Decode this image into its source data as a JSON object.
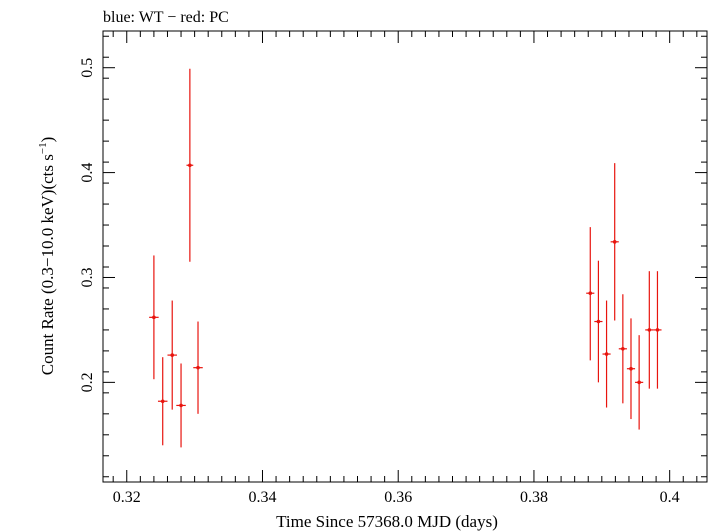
{
  "chart_data": {
    "type": "scatter",
    "title": "blue: WT − red: PC",
    "xlabel": "Time Since 57368.0 MJD (days)",
    "ylabel_main": "Count Rate (0.3−10.0 keV)(cts s",
    "ylabel_sup": "−1",
    "ylabel_close": ")",
    "xlim": [
      0.3165,
      0.4055
    ],
    "ylim": [
      0.105,
      0.535
    ],
    "xticks": [
      0.32,
      0.34,
      0.36,
      0.38,
      0.4
    ],
    "xtick_labels": [
      "0.32",
      "0.34",
      "0.36",
      "0.38",
      "0.4"
    ],
    "yticks": [
      0.2,
      0.3,
      0.4,
      0.5
    ],
    "ytick_labels": [
      "0.2",
      "0.3",
      "0.4",
      "0.5"
    ],
    "series": [
      {
        "name": "PC",
        "color": "#e8140e",
        "points": [
          {
            "x": 0.324,
            "xerr": 0.0007,
            "y": 0.262,
            "ylo": 0.203,
            "yhi": 0.321
          },
          {
            "x": 0.3253,
            "xerr": 0.0007,
            "y": 0.182,
            "ylo": 0.14,
            "yhi": 0.224
          },
          {
            "x": 0.3267,
            "xerr": 0.0007,
            "y": 0.226,
            "ylo": 0.174,
            "yhi": 0.278
          },
          {
            "x": 0.328,
            "xerr": 0.0007,
            "y": 0.178,
            "ylo": 0.138,
            "yhi": 0.218
          },
          {
            "x": 0.3293,
            "xerr": 0.0005,
            "y": 0.407,
            "ylo": 0.315,
            "yhi": 0.499
          },
          {
            "x": 0.3305,
            "xerr": 0.0007,
            "y": 0.214,
            "ylo": 0.17,
            "yhi": 0.258
          },
          {
            "x": 0.3883,
            "xerr": 0.0006,
            "y": 0.285,
            "ylo": 0.221,
            "yhi": 0.348
          },
          {
            "x": 0.3895,
            "xerr": 0.0006,
            "y": 0.258,
            "ylo": 0.2,
            "yhi": 0.316
          },
          {
            "x": 0.3907,
            "xerr": 0.0006,
            "y": 0.227,
            "ylo": 0.176,
            "yhi": 0.278
          },
          {
            "x": 0.3919,
            "xerr": 0.0006,
            "y": 0.334,
            "ylo": 0.259,
            "yhi": 0.409
          },
          {
            "x": 0.3931,
            "xerr": 0.0006,
            "y": 0.232,
            "ylo": 0.18,
            "yhi": 0.284
          },
          {
            "x": 0.3943,
            "xerr": 0.0006,
            "y": 0.213,
            "ylo": 0.165,
            "yhi": 0.261
          },
          {
            "x": 0.3955,
            "xerr": 0.0006,
            "y": 0.2,
            "ylo": 0.155,
            "yhi": 0.245
          },
          {
            "x": 0.397,
            "xerr": 0.0006,
            "y": 0.25,
            "ylo": 0.194,
            "yhi": 0.306
          },
          {
            "x": 0.3982,
            "xerr": 0.0006,
            "y": 0.25,
            "ylo": 0.194,
            "yhi": 0.306
          }
        ]
      }
    ]
  }
}
